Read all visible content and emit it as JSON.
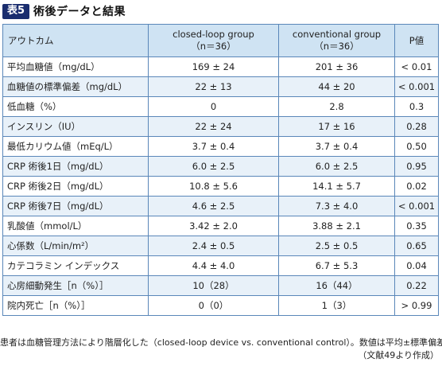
{
  "title": {
    "badge": "表5",
    "text": "術後データと結果"
  },
  "table": {
    "headers": [
      {
        "line1": "アウトカム",
        "line2": ""
      },
      {
        "line1": "closed-loop group",
        "line2": "（n＝36）"
      },
      {
        "line1": "conventional group",
        "line2": "（n＝36）"
      },
      {
        "line1": "P値",
        "line2": ""
      }
    ],
    "rows": [
      [
        "平均血糖値（mg/dL）",
        "169 ± 24",
        "201 ± 36",
        "< 0.01"
      ],
      [
        "血糖値の標準偏差（mg/dL）",
        "22 ± 13",
        "44 ± 20",
        "< 0.001"
      ],
      [
        "低血糖（%）",
        "0",
        "2.8",
        "0.3"
      ],
      [
        "インスリン（IU）",
        "22 ± 24",
        "17 ± 16",
        "0.28"
      ],
      [
        "最低カリウム値（mEq/L）",
        "3.7 ± 0.4",
        "3.7 ± 0.4",
        "0.50"
      ],
      [
        "CRP 術後1日（mg/dL）",
        "6.0 ± 2.5",
        "6.0 ± 2.5",
        "0.95"
      ],
      [
        "CRP 術後2日（mg/dL）",
        "10.8 ± 5.6",
        "14.1 ± 5.7",
        "0.02"
      ],
      [
        "CRP 術後7日（mg/dL）",
        "4.6 ± 2.5",
        "7.3 ± 4.0",
        "< 0.001"
      ],
      [
        "乳酸値（mmol/L）",
        "3.42 ± 2.0",
        "3.88 ± 2.1",
        "0.35"
      ],
      [
        "心係数（L/min/m²）",
        "2.4 ± 0.5",
        "2.5 ± 0.5",
        "0.65"
      ],
      [
        "カテコラミン インデックス",
        "4.4 ± 4.0",
        "6.7 ± 5.3",
        "0.04"
      ],
      [
        "心房細動発生［n（%）］",
        "10（28）",
        "16（44）",
        "0.22"
      ],
      [
        "院内死亡［n（%）］",
        "0（0）",
        "1（3）",
        "> 0.99"
      ]
    ]
  },
  "footnote": {
    "line1": "患者は血糖管理方法により階層化した（closed-loop device vs. conventional control）。数値は平均±標準偏差",
    "line2": "（文献49より作成）"
  }
}
